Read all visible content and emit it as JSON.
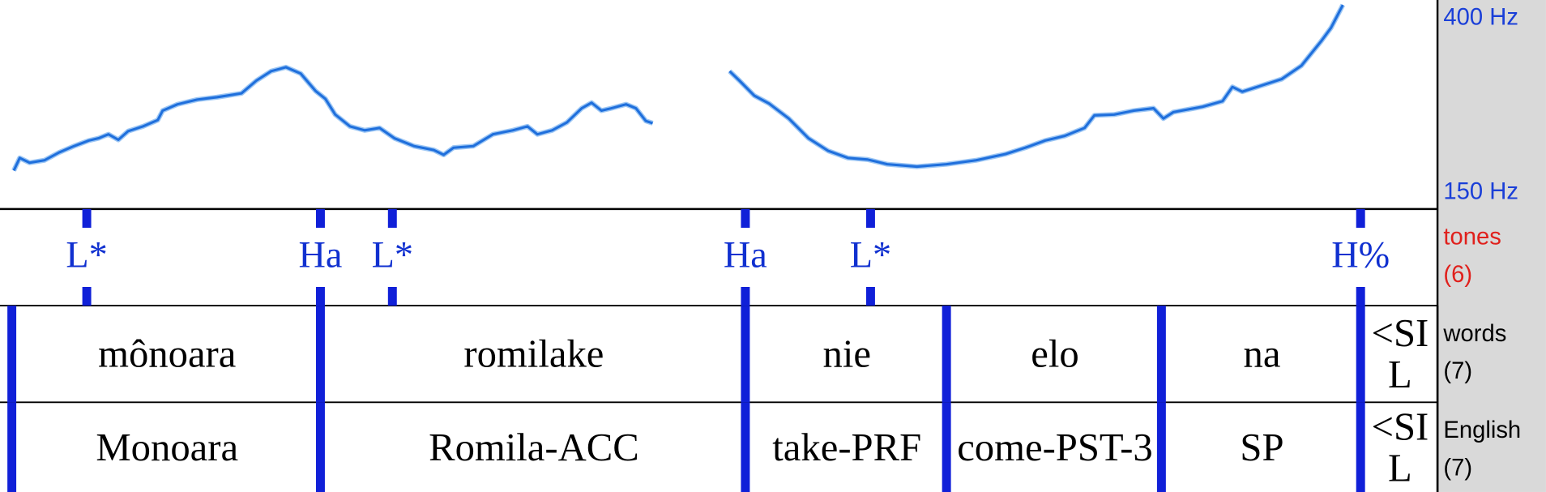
{
  "pitch": {
    "type": "line",
    "x": [
      0.014,
      0.02,
      0.03,
      0.045,
      0.06,
      0.075,
      0.09,
      0.1,
      0.11,
      0.12,
      0.13,
      0.145,
      0.16,
      0.165,
      0.18,
      0.2,
      0.22,
      0.245,
      0.26,
      0.275,
      0.29,
      0.305,
      0.32,
      0.33,
      0.34,
      0.355,
      0.37,
      0.385,
      0.4,
      0.42,
      0.44,
      0.45,
      0.46,
      0.48,
      0.5,
      0.52,
      0.535,
      0.545,
      0.56,
      0.575,
      0.59,
      0.6,
      0.61,
      0.62,
      0.635,
      0.645,
      0.655,
      0.662,
      0.7,
      0.74,
      0.75,
      0.765,
      0.78,
      0.8,
      0.82,
      0.84,
      0.86,
      0.88,
      0.9,
      0.93,
      0.96,
      0.99,
      1.02,
      1.04,
      1.06,
      1.08,
      1.1,
      1.11,
      1.13,
      1.15,
      1.17,
      1.18,
      1.19,
      1.22,
      1.24,
      1.25,
      1.26,
      1.28,
      1.3,
      1.32,
      1.34,
      1.35,
      1.362
    ],
    "values": [
      190,
      206,
      200,
      203,
      213,
      221,
      228,
      231,
      236,
      229,
      240,
      246,
      254,
      266,
      274,
      280,
      283,
      288,
      304,
      316,
      321,
      313,
      291,
      281,
      261,
      246,
      241,
      244,
      231,
      221,
      216,
      210,
      219,
      221,
      236,
      241,
      246,
      236,
      241,
      251,
      269,
      276,
      266,
      269,
      274,
      269,
      253,
      250,
      null,
      316,
      304,
      285,
      275,
      256,
      231,
      215,
      206,
      204,
      198,
      195,
      198,
      203,
      211,
      219,
      228,
      234,
      244,
      260,
      261,
      266,
      269,
      256,
      264,
      271,
      278,
      296,
      290,
      298,
      306,
      323,
      354,
      371,
      400
    ],
    "color": "#1f6fdc",
    "xlim": [
      0,
      1.458
    ],
    "ylim": [
      150,
      400
    ],
    "yticks": [
      {
        "value": 400,
        "label": "400 Hz"
      },
      {
        "value": 150,
        "label": "150 Hz"
      }
    ]
  },
  "tiers": [
    {
      "name": "tones",
      "count": "(6)",
      "points": [
        {
          "time": 0.088,
          "label": "L*"
        },
        {
          "time": 0.325,
          "label": "Ha"
        },
        {
          "time": 0.398,
          "label": "L*"
        },
        {
          "time": 0.756,
          "label": "Ha"
        },
        {
          "time": 0.883,
          "label": "L*"
        },
        {
          "time": 1.38,
          "label": "H%"
        }
      ]
    },
    {
      "name": "words",
      "count": "(7)",
      "intervals": [
        {
          "start": 0.012,
          "end": 0.325,
          "text": "mônoara"
        },
        {
          "start": 0.325,
          "end": 0.756,
          "text": "romilake"
        },
        {
          "start": 0.756,
          "end": 0.96,
          "text": "nie"
        },
        {
          "start": 0.96,
          "end": 1.178,
          "text": "elo"
        },
        {
          "start": 1.178,
          "end": 1.38,
          "text": "na"
        },
        {
          "start": 1.38,
          "end": 1.458,
          "text": "<SIL"
        }
      ]
    },
    {
      "name": "English",
      "count": "(7)",
      "intervals": [
        {
          "start": 0.012,
          "end": 0.325,
          "text": "Monoara"
        },
        {
          "start": 0.325,
          "end": 0.756,
          "text": "Romila-ACC"
        },
        {
          "start": 0.756,
          "end": 0.96,
          "text": "take-PRF"
        },
        {
          "start": 0.96,
          "end": 1.178,
          "text": "come-PST-3"
        },
        {
          "start": 1.178,
          "end": 1.38,
          "text": "SP"
        },
        {
          "start": 1.38,
          "end": 1.458,
          "text": "<SIL"
        }
      ]
    }
  ]
}
